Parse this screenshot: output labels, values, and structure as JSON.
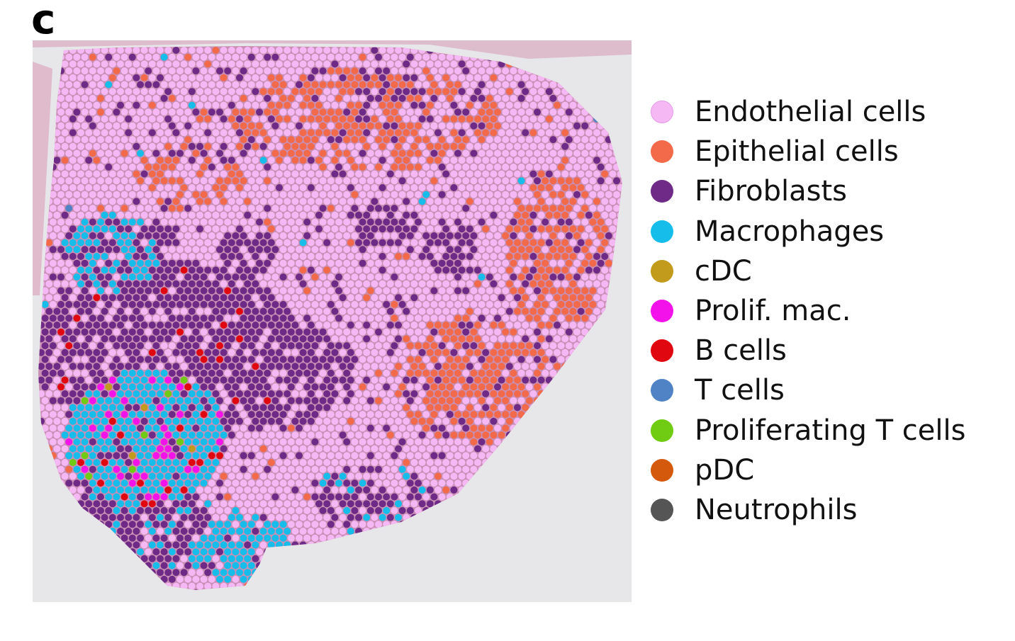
{
  "panel_label": "c",
  "legend": [
    {
      "label": "Endothelial cells",
      "color": "#f5b8f5",
      "key": "endo"
    },
    {
      "label": "Epithelial cells",
      "color": "#f26a4a",
      "key": "epi"
    },
    {
      "label": "Fibroblasts",
      "color": "#6e2a86",
      "key": "fib"
    },
    {
      "label": "Macrophages",
      "color": "#17bdea",
      "key": "mac"
    },
    {
      "label": "cDC",
      "color": "#c29a1c",
      "key": "cdc"
    },
    {
      "label": "Prolif. mac.",
      "color": "#f312e9",
      "key": "pmac"
    },
    {
      "label": "B cells",
      "color": "#e00710",
      "key": "bcell"
    },
    {
      "label": "T cells",
      "color": "#4f83c6",
      "key": "tcell"
    },
    {
      "label": "Proliferating T cells",
      "color": "#6fcc12",
      "key": "ptcell"
    },
    {
      "label": "pDC",
      "color": "#d4590d",
      "key": "pdc"
    },
    {
      "label": "Neutrophils",
      "color": "#555555",
      "key": "neut"
    }
  ],
  "colors": {
    "tissue_stain": "#e1b3c8",
    "slide_background": "#e7e6e8"
  }
}
